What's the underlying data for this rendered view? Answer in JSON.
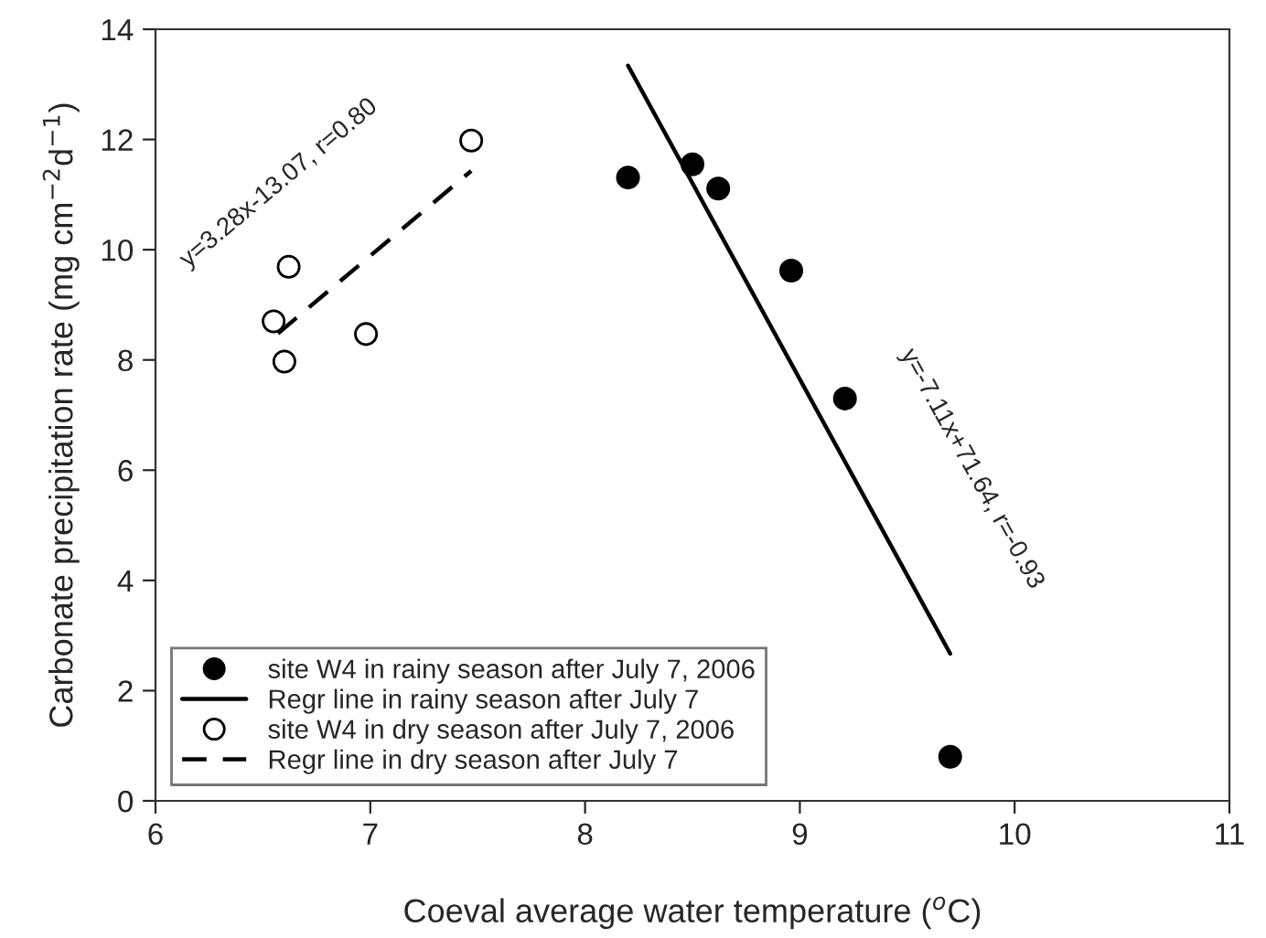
{
  "chart_data": {
    "type": "scatter",
    "xlabel": "Coeval average water temperature ($^{o}$C)",
    "ylabel": "Carbonate precipitation rate (mg cm$^{−2}$d$^{−1}$)",
    "xlim": [
      6,
      11
    ],
    "xticks": [
      6,
      7,
      8,
      9,
      10,
      11
    ],
    "ylim": [
      0,
      14
    ],
    "yticks": [
      0,
      2,
      4,
      6,
      8,
      10,
      12,
      14
    ],
    "grid": false,
    "legend": "bottom left",
    "series": [
      {
        "name": "site W4 in rainy season after July 7, 2006",
        "marker": "circle",
        "color": "#000000",
        "x": [
          8.2,
          8.5,
          8.62,
          8.96,
          9.21,
          9.7
        ],
        "values": [
          11.31,
          11.55,
          11.11,
          9.62,
          7.3,
          0.8
        ]
      },
      {
        "name": "Regr line in rainy season after July 7",
        "type": "line",
        "marker": "none",
        "line_style": "solid",
        "color": "#000000",
        "x": [
          8.2,
          9.7
        ],
        "values": [
          13.34,
          2.67
        ]
      },
      {
        "name": "site W4 in dry season after July 7, 2006",
        "marker": "circle",
        "color": "#ffffff",
        "x": [
          6.55,
          6.62,
          6.6,
          6.98,
          7.47
        ],
        "values": [
          8.7,
          9.69,
          7.97,
          8.47,
          11.98
        ]
      },
      {
        "name": "Regr line in dry season after July 7",
        "type": "line",
        "marker": "none",
        "line_style": "dashed",
        "color": "#000000",
        "x": [
          6.57,
          7.47
        ],
        "values": [
          8.48,
          11.43
        ]
      }
    ],
    "annotations": [
      "y=3.28x-13.07, r=0.80",
      "y=-7.11x+71.64, r=-0.93"
    ]
  }
}
